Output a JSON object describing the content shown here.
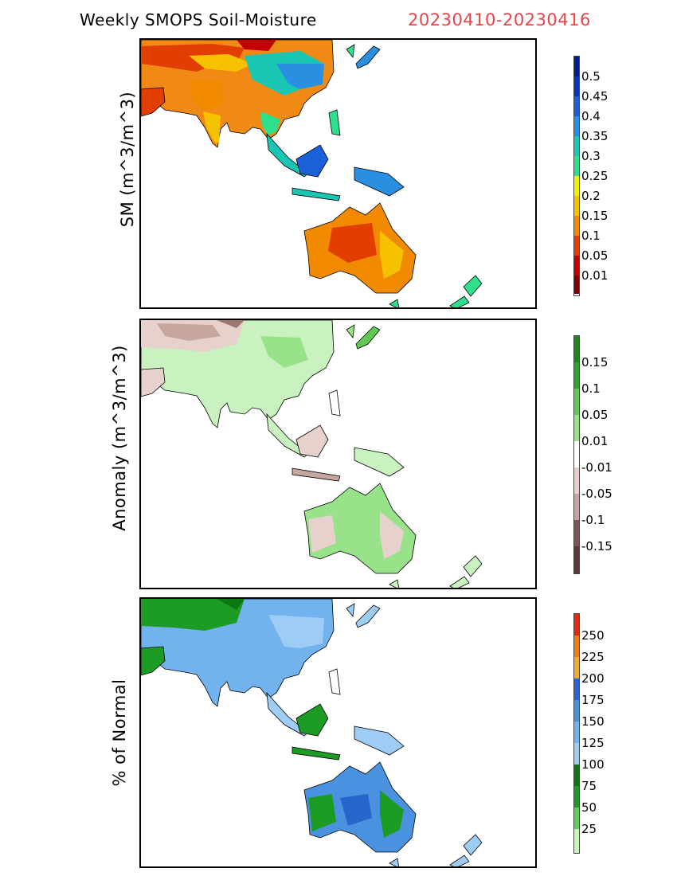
{
  "header": {
    "title": "Weekly SMOPS Soil-Moisture",
    "date_range": "20230410-20230416"
  },
  "panels": [
    {
      "ylabel": "SM (m^3/m^3)",
      "colors": [
        "#7a0000",
        "#c40000",
        "#e23e00",
        "#f28a00",
        "#f6c200",
        "#f4f000",
        "#2ee08c",
        "#19c6b4",
        "#2a8fe0",
        "#1a60d8",
        "#0a35b8",
        "#00208a"
      ],
      "ticks": [
        "0.5",
        "0.45",
        "0.4",
        "0.35",
        "0.3",
        "0.25",
        "0.2",
        "0.15",
        "0.1",
        "0.05",
        "0.01"
      ]
    },
    {
      "ylabel": "Anomaly (m^3/m^3)",
      "colors": [
        "#5a3a34",
        "#7c5650",
        "#9c7670",
        "#c6a7a0",
        "#e7d1cc",
        "#ffffff",
        "#c9f2c0",
        "#98e38a",
        "#5fc954",
        "#2aa52a",
        "#1a8a1a"
      ],
      "ticks": [
        "0.15",
        "0.1",
        "0.05",
        "0.01",
        "-0.01",
        "-0.05",
        "-0.1",
        "-0.15"
      ]
    },
    {
      "ylabel": "% of Normal",
      "colors": [
        "#c8f5b8",
        "#98e88a",
        "#5ad057",
        "#1c9c24",
        "#0c7a14",
        "#9dccf4",
        "#72b2ee",
        "#4a92e0",
        "#2666cc",
        "#f2a93a",
        "#f07c14",
        "#e42a0c"
      ],
      "ticks": [
        "250",
        "225",
        "200",
        "175",
        "150",
        "125",
        "100",
        "75",
        "50",
        "25"
      ]
    }
  ]
}
